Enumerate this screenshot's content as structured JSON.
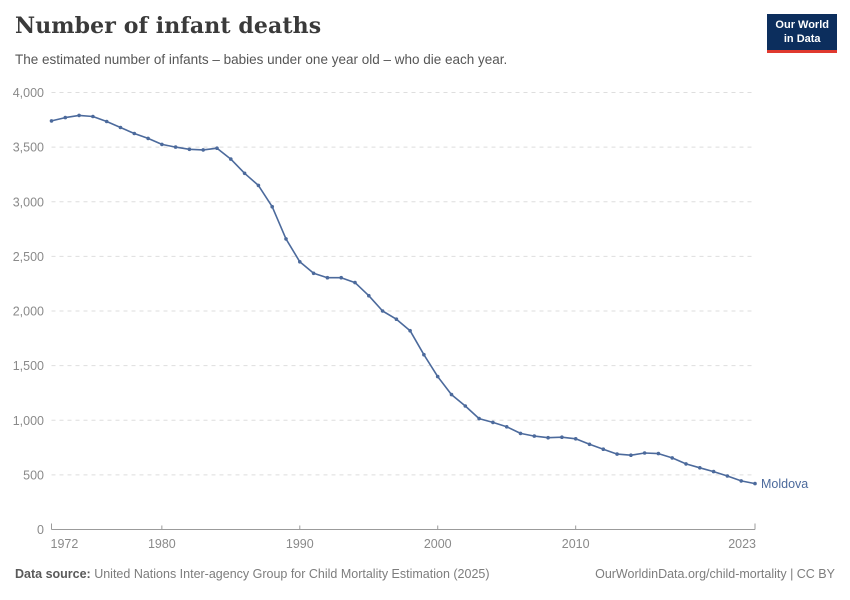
{
  "header": {
    "title": "Number of infant deaths",
    "subtitle": "The estimated number of infants – babies under one year old – who die each year.",
    "logo": {
      "line1": "Our World",
      "line2": "in Data"
    }
  },
  "colors": {
    "line": "#4c6a9c",
    "logo_background": "#0c2e5d",
    "logo_stripe": "#e0392f",
    "grid": "#dedede",
    "axis": "#9b9b9b",
    "tick_text": "#8a8a8a"
  },
  "chart_data": {
    "type": "line",
    "title": "Number of infant deaths",
    "xlabel": "",
    "ylabel": "",
    "xlim": [
      1972,
      2023
    ],
    "ylim": [
      0,
      4000
    ],
    "grid": "horizontal-dashed",
    "legend_position": "end-of-line-label",
    "x_ticks": [
      1972,
      1980,
      1990,
      2000,
      2010,
      2023
    ],
    "y_ticks": [
      0,
      500,
      1000,
      1500,
      2000,
      2500,
      3000,
      3500,
      4000
    ],
    "y_tick_labels": [
      "0",
      "500",
      "1,000",
      "1,500",
      "2,000",
      "2,500",
      "3,000",
      "3,500",
      "4,000"
    ],
    "series": [
      {
        "name": "Moldova",
        "color": "#4c6a9c",
        "x": [
          1972,
          1973,
          1974,
          1975,
          1976,
          1977,
          1978,
          1979,
          1980,
          1981,
          1982,
          1983,
          1984,
          1985,
          1986,
          1987,
          1988,
          1989,
          1990,
          1991,
          1992,
          1993,
          1994,
          1995,
          1996,
          1997,
          1998,
          1999,
          2000,
          2001,
          2002,
          2003,
          2004,
          2005,
          2006,
          2007,
          2008,
          2009,
          2010,
          2011,
          2012,
          2013,
          2014,
          2015,
          2016,
          2017,
          2018,
          2019,
          2020,
          2021,
          2022,
          2023
        ],
        "values": [
          3740,
          3770,
          3790,
          3780,
          3735,
          3680,
          3625,
          3580,
          3525,
          3500,
          3480,
          3475,
          3490,
          3390,
          3260,
          3150,
          2955,
          2660,
          2450,
          2345,
          2305,
          2305,
          2260,
          2140,
          2000,
          1925,
          1820,
          1600,
          1400,
          1235,
          1130,
          1015,
          980,
          940,
          880,
          855,
          840,
          845,
          830,
          780,
          735,
          690,
          680,
          700,
          695,
          655,
          600,
          565,
          530,
          490,
          445,
          420
        ]
      }
    ]
  },
  "footer": {
    "source_label": "Data source:",
    "source_text": " United Nations Inter-agency Group for Child Mortality Estimation (2025)",
    "rights": "OurWorldinData.org/child-mortality | CC BY"
  }
}
